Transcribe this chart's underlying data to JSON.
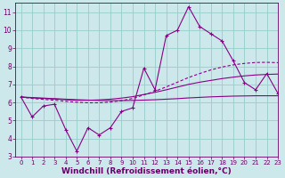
{
  "x": [
    0,
    1,
    2,
    3,
    4,
    5,
    6,
    7,
    8,
    9,
    10,
    11,
    12,
    13,
    14,
    15,
    16,
    17,
    18,
    19,
    20,
    21,
    22,
    23
  ],
  "y_main": [
    6.3,
    5.2,
    5.8,
    5.9,
    4.5,
    3.3,
    4.6,
    4.2,
    4.6,
    5.5,
    5.7,
    7.9,
    6.7,
    9.7,
    10.0,
    11.3,
    10.2,
    9.8,
    9.4,
    8.3,
    7.1,
    6.7,
    7.6,
    6.5
  ],
  "trend1": [
    6.3,
    6.27,
    6.24,
    6.21,
    6.18,
    6.15,
    6.13,
    6.11,
    6.1,
    6.1,
    6.11,
    6.13,
    6.15,
    6.18,
    6.21,
    6.25,
    6.28,
    6.31,
    6.33,
    6.35,
    6.36,
    6.37,
    6.37,
    6.37
  ],
  "trend2": [
    6.3,
    6.25,
    6.22,
    6.19,
    6.15,
    6.12,
    6.12,
    6.14,
    6.18,
    6.24,
    6.32,
    6.44,
    6.56,
    6.7,
    6.85,
    7.0,
    7.12,
    7.22,
    7.32,
    7.4,
    7.47,
    7.52,
    7.55,
    7.57
  ],
  "trend3": [
    6.3,
    6.22,
    6.17,
    6.12,
    6.06,
    6.01,
    5.98,
    5.98,
    6.02,
    6.1,
    6.22,
    6.42,
    6.62,
    6.86,
    7.12,
    7.38,
    7.6,
    7.8,
    7.96,
    8.08,
    8.16,
    8.21,
    8.22,
    8.2
  ],
  "line_color": "#880088",
  "bg_color": "#cce8ea",
  "grid_color": "#99cccc",
  "axis_color": "#660066",
  "xlabel": "Windchill (Refroidissement éolien,°C)",
  "ylim": [
    3,
    11.5
  ],
  "xlim": [
    -0.5,
    23
  ],
  "yticks": [
    3,
    4,
    5,
    6,
    7,
    8,
    9,
    10,
    11
  ],
  "xticks": [
    0,
    1,
    2,
    3,
    4,
    5,
    6,
    7,
    8,
    9,
    10,
    11,
    12,
    13,
    14,
    15,
    16,
    17,
    18,
    19,
    20,
    21,
    22,
    23
  ],
  "xlabel_fontsize": 6.5,
  "tick_fontsize": 5.5
}
